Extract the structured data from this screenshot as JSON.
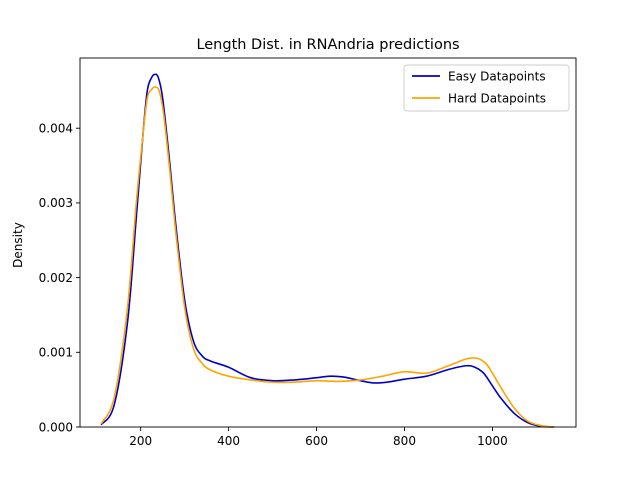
{
  "chart_data": {
    "type": "line",
    "title": "Length Dist. in RNAndria predictions",
    "xlabel": "",
    "ylabel": "Density",
    "xlim": [
      62,
      1190
    ],
    "ylim": [
      0,
      0.00494
    ],
    "xticks": [
      200,
      400,
      600,
      800,
      1000
    ],
    "yticks": [
      0,
      0.001,
      0.002,
      0.003,
      0.004
    ],
    "ytick_labels": [
      "0.000",
      "0.001",
      "0.002",
      "0.003",
      "0.004"
    ],
    "grid": false,
    "legend_position": "top-right",
    "series": [
      {
        "name": "Easy Datapoints",
        "color": "#0000cc",
        "x": [
          110,
          140,
          170,
          190,
          205,
          215,
          225,
          232,
          240,
          250,
          265,
          280,
          300,
          320,
          340,
          360,
          400,
          450,
          500,
          550,
          600,
          630,
          660,
          700,
          730,
          760,
          800,
          850,
          900,
          940,
          960,
          980,
          1000,
          1020,
          1050,
          1080,
          1110,
          1140
        ],
        "y": [
          3e-05,
          0.0003,
          0.0014,
          0.0028,
          0.0039,
          0.0045,
          0.00468,
          0.00472,
          0.00468,
          0.0044,
          0.0036,
          0.0027,
          0.0017,
          0.00115,
          0.00095,
          0.00088,
          0.0008,
          0.00066,
          0.00062,
          0.00063,
          0.00066,
          0.00068,
          0.00067,
          0.00062,
          0.00059,
          0.0006,
          0.00064,
          0.00068,
          0.00077,
          0.00082,
          0.0008,
          0.00072,
          0.00055,
          0.00038,
          0.00018,
          6e-05,
          1e-05,
          0.0
        ]
      },
      {
        "name": "Hard Datapoints",
        "color": "#ffa500",
        "x": [
          110,
          140,
          170,
          190,
          205,
          215,
          225,
          233,
          242,
          252,
          265,
          280,
          300,
          320,
          340,
          360,
          400,
          450,
          500,
          550,
          600,
          650,
          700,
          750,
          800,
          850,
          900,
          940,
          965,
          985,
          1000,
          1020,
          1050,
          1080,
          1110,
          1140
        ],
        "y": [
          4e-05,
          0.0004,
          0.0016,
          0.003,
          0.0039,
          0.0044,
          0.00452,
          0.00455,
          0.0045,
          0.0042,
          0.0035,
          0.0026,
          0.0016,
          0.00105,
          0.00085,
          0.00076,
          0.00068,
          0.00063,
          0.0006,
          0.0006,
          0.00062,
          0.00061,
          0.00063,
          0.00068,
          0.00074,
          0.00072,
          0.00082,
          0.00091,
          0.00092,
          0.00085,
          0.00072,
          0.00052,
          0.00025,
          8e-05,
          2e-05,
          0.0
        ]
      }
    ]
  }
}
